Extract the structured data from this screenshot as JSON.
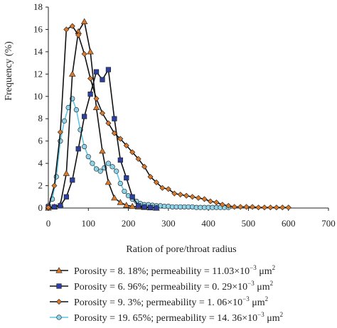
{
  "chart_data": {
    "type": "line",
    "ylabel": "Frequency (%)",
    "xlabel": "Ration of pore/throat radius",
    "xlim": [
      0,
      700
    ],
    "ylim": [
      0,
      18
    ],
    "x_ticks": [
      0,
      100,
      200,
      300,
      400,
      500,
      600,
      700
    ],
    "y_ticks": [
      0,
      2,
      4,
      6,
      8,
      10,
      12,
      14,
      16,
      18
    ],
    "grid": false,
    "legend_position": "bottom",
    "series": [
      {
        "name": "Porosity = 8. 18%; permeability = 11.03×10−3 μm2",
        "label_main": "Porosity = 8. 18%; permeability = 11.03×10",
        "label_exp": "−3",
        "label_unit": " μm",
        "label_unit_exp": "2",
        "marker": "triangle",
        "marker_color": "#d9792b",
        "line_color": "#111111",
        "x": [
          0,
          15,
          30,
          45,
          60,
          75,
          90,
          105,
          120,
          135,
          150,
          165,
          180,
          195,
          210,
          225,
          240,
          255,
          270
        ],
        "y": [
          0,
          0.1,
          0.3,
          3.1,
          12.0,
          15.8,
          16.7,
          14.0,
          9.0,
          5.1,
          2.3,
          0.9,
          0.5,
          0.25,
          0.15,
          0.1,
          0.05,
          0.02,
          0.0
        ]
      },
      {
        "name": "Porosity = 6. 96%; permeability = 0. 29×10−3 μm2",
        "label_main": "Porosity = 6. 96%; permeability = 0. 29×10",
        "label_exp": "−3",
        "label_unit": " μm",
        "label_unit_exp": "2",
        "marker": "square",
        "marker_color": "#2e3f9e",
        "line_color": "#111111",
        "x": [
          0,
          15,
          30,
          45,
          60,
          75,
          90,
          105,
          120,
          135,
          150,
          165,
          180,
          195,
          210,
          225,
          240,
          255,
          270
        ],
        "y": [
          0.1,
          0.1,
          0.2,
          1.0,
          2.5,
          5.3,
          8.2,
          10.2,
          12.2,
          11.5,
          12.4,
          8.0,
          4.3,
          2.7,
          1.0,
          0.2,
          0.1,
          0.05,
          0.0
        ]
      },
      {
        "name": "Porosity = 9. 3%; permeability = 1. 06×10−3 μm2",
        "label_main": "Porosity = 9. 3%; permeability = 1. 06×10",
        "label_exp": "−3",
        "label_unit": " μm",
        "label_unit_exp": "2",
        "marker": "diamond",
        "marker_color": "#d9792b",
        "line_color": "#111111",
        "x": [
          0,
          15,
          30,
          45,
          60,
          75,
          90,
          105,
          120,
          135,
          150,
          165,
          180,
          195,
          210,
          225,
          240,
          255,
          270,
          285,
          300,
          315,
          330,
          345,
          360,
          375,
          390,
          405,
          420,
          435,
          450,
          465,
          480,
          495,
          510,
          525,
          540,
          555,
          570,
          585,
          600
        ],
        "y": [
          0.05,
          2.0,
          6.8,
          16.0,
          16.3,
          15.5,
          13.8,
          11.6,
          9.8,
          8.5,
          7.6,
          6.7,
          6.2,
          5.6,
          5.0,
          4.4,
          3.7,
          2.8,
          2.3,
          1.8,
          1.7,
          1.3,
          1.2,
          1.1,
          1.0,
          0.9,
          0.8,
          0.6,
          0.5,
          0.3,
          0.2,
          0.1,
          0.1,
          0.1,
          0.1,
          0.05,
          0.05,
          0.05,
          0.05,
          0.05,
          0.05
        ]
      },
      {
        "name": "Porosity = 19. 65%; permeability = 14. 36×10−3 μm2",
        "label_main": "Porosity = 19. 65%; permeability = 14. 36×10",
        "label_exp": "−3",
        "label_unit": " μm",
        "label_unit_exp": "2",
        "marker": "circle",
        "marker_color": "#8fd4ea",
        "line_color": "#5fc6e3",
        "x": [
          0,
          10,
          20,
          30,
          40,
          50,
          60,
          70,
          80,
          90,
          100,
          110,
          120,
          130,
          140,
          150,
          160,
          170,
          180,
          190,
          200,
          210,
          220,
          230,
          240,
          250,
          260,
          270,
          280,
          290,
          300,
          310,
          320,
          330,
          340,
          350,
          360,
          370,
          380,
          390,
          400,
          410,
          420,
          430,
          440,
          450
        ],
        "y": [
          0.2,
          0.8,
          2.8,
          6.0,
          7.8,
          9.0,
          9.8,
          8.8,
          7.0,
          5.5,
          4.6,
          4.0,
          3.5,
          3.3,
          3.6,
          4.0,
          3.7,
          3.3,
          2.2,
          1.5,
          1.1,
          0.8,
          0.6,
          0.4,
          0.3,
          0.3,
          0.25,
          0.2,
          0.2,
          0.15,
          0.15,
          0.1,
          0.1,
          0.1,
          0.1,
          0.1,
          0.1,
          0.05,
          0.05,
          0.05,
          0.05,
          0.05,
          0.05,
          0.05,
          0.05,
          0.05
        ]
      }
    ]
  }
}
